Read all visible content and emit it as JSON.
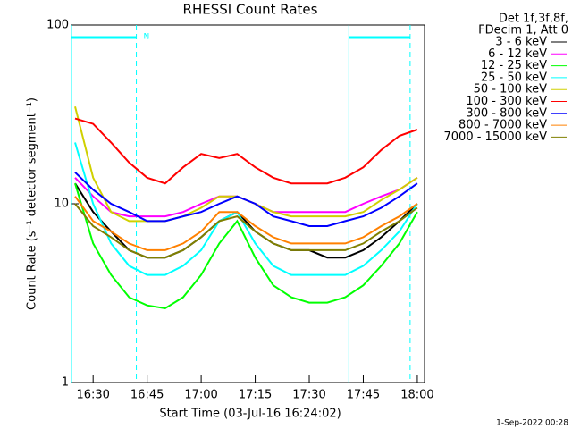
{
  "chart_data": {
    "type": "line",
    "title": "RHESSI Count Rates",
    "x_label": "Start Time (03-Jul-16 16:24:02)",
    "y_label": "Count Rate (s⁻¹ detector segment⁻¹)",
    "legend_header": [
      "Det 1f,3f,8f,",
      "FDecim 1, Att 0"
    ],
    "footer": "1-Sep-2022 00:28",
    "annotation": "N",
    "log_y": true,
    "xlim": [
      "16:24",
      "18:02"
    ],
    "xticks": [
      "16:30",
      "16:45",
      "17:00",
      "17:15",
      "17:30",
      "17:45",
      "18:00"
    ],
    "ylim": [
      1,
      100
    ],
    "yticks": [
      1,
      10,
      100
    ],
    "intervals": [
      {
        "start": "16:24",
        "end": "16:42",
        "color": "#00ffff"
      },
      {
        "start": "17:41",
        "end": "17:58",
        "color": "#00ffff"
      }
    ],
    "x": [
      "16:25",
      "16:30",
      "16:35",
      "16:40",
      "16:45",
      "16:50",
      "16:55",
      "17:00",
      "17:05",
      "17:10",
      "17:15",
      "17:20",
      "17:25",
      "17:30",
      "17:35",
      "17:40",
      "17:45",
      "17:50",
      "17:55",
      "18:00"
    ],
    "series": [
      {
        "name": "3 - 6 keV",
        "color": "#000000",
        "values": [
          13,
          9,
          7,
          5.5,
          5,
          5,
          5.5,
          6.5,
          8,
          9,
          7,
          6,
          5.5,
          5.5,
          5,
          5,
          5.5,
          6.5,
          8,
          10
        ]
      },
      {
        "name": "6 - 12 keV",
        "color": "#ff00ff",
        "values": [
          14,
          11,
          9,
          8.5,
          8.5,
          8.5,
          9,
          10,
          11,
          11,
          10,
          9,
          9,
          9,
          9,
          9,
          10,
          11,
          12,
          14
        ]
      },
      {
        "name": "12 - 25 keV",
        "color": "#00ff00",
        "values": [
          13,
          6,
          4,
          3,
          2.7,
          2.6,
          3,
          4,
          6,
          8,
          5,
          3.5,
          3,
          2.8,
          2.8,
          3,
          3.5,
          4.5,
          6,
          9
        ]
      },
      {
        "name": "25 - 50 keV",
        "color": "#00ffff",
        "values": [
          22,
          10,
          6,
          4.5,
          4,
          4,
          4.5,
          5.5,
          8,
          9,
          6,
          4.5,
          4,
          4,
          4,
          4,
          4.5,
          5.5,
          7,
          10
        ]
      },
      {
        "name": "50 - 100 keV",
        "color": "#d0d000",
        "values": [
          35,
          14,
          9,
          8,
          8,
          8,
          8.5,
          9.5,
          11,
          11,
          10,
          9,
          8.5,
          8.5,
          8.5,
          8.5,
          9,
          10.5,
          12,
          14
        ]
      },
      {
        "name": "100 - 300 keV",
        "color": "#ff0000",
        "values": [
          30,
          28,
          22,
          17,
          14,
          13,
          16,
          19,
          18,
          19,
          16,
          14,
          13,
          13,
          13,
          14,
          16,
          20,
          24,
          26
        ]
      },
      {
        "name": "300 - 800 keV",
        "color": "#0000ff",
        "values": [
          15,
          12,
          10,
          9,
          8,
          8,
          8.5,
          9,
          10,
          11,
          10,
          8.5,
          8,
          7.5,
          7.5,
          8,
          8.5,
          9.5,
          11,
          13
        ]
      },
      {
        "name": "800 - 7000 keV",
        "color": "#ff8000",
        "values": [
          11,
          8,
          7,
          6,
          5.5,
          5.5,
          6,
          7,
          9,
          9,
          7.5,
          6.5,
          6,
          6,
          6,
          6,
          6.5,
          7.5,
          8.5,
          10
        ]
      },
      {
        "name": "7000 - 15000 keV",
        "color": "#808000",
        "values": [
          10,
          7.5,
          6.5,
          5.5,
          5,
          5,
          5.5,
          6.5,
          8,
          8.5,
          7,
          6,
          5.5,
          5.5,
          5.5,
          5.5,
          6,
          7,
          8,
          9.5
        ]
      }
    ]
  }
}
